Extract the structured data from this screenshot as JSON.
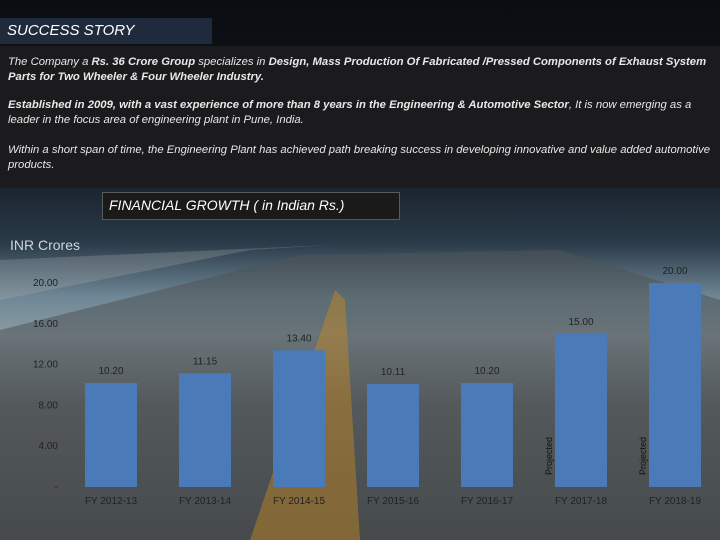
{
  "header": {
    "title": "SUCCESS STORY",
    "para1_a": "The Company a ",
    "para1_b": "Rs. 36 Crore Group",
    "para1_c": " specializes in ",
    "para1_d": "Design, Mass Production Of Fabricated /Pressed Components of Exhaust System Parts for Two Wheeler & Four Wheeler Industry.",
    "para2_a": "Established in 2009, with a vast experience of more than 8 years in the Engineering & Automotive Sector",
    "para2_b": ", It is now emerging as a leader in the focus area of engineering plant in Pune, India.",
    "para3": "Within a short span of time, the Engineering Plant has achieved path breaking success in developing innovative and value added automotive products."
  },
  "chart_title": "FINANCIAL GROWTH ( in Indian Rs.)",
  "unit_label": "INR Crores",
  "chart_data": {
    "type": "bar",
    "categories": [
      "FY 2012-13",
      "FY 2013-14",
      "FY 2014-15",
      "FY 2015-16",
      "FY 2016-17",
      "FY 2017-18",
      "FY 2018-19"
    ],
    "values": [
      10.2,
      11.15,
      13.4,
      10.11,
      10.2,
      15.0,
      20.0
    ],
    "data_labels": [
      "10.20",
      "11.15",
      "13.40",
      "10.11",
      "10.20",
      "15.00",
      "20.00"
    ],
    "bar_annotations": [
      "",
      "",
      "",
      "",
      "",
      "Projected",
      "Projected"
    ],
    "y_ticks": [
      "-",
      "4.00",
      "8.00",
      "12.00",
      "16.00",
      "20.00"
    ],
    "y_tick_values": [
      0,
      4,
      8,
      12,
      16,
      20
    ],
    "ylim": [
      0,
      20
    ],
    "bar_color": "#4a7ab8",
    "ylabel": "INR Crores"
  }
}
